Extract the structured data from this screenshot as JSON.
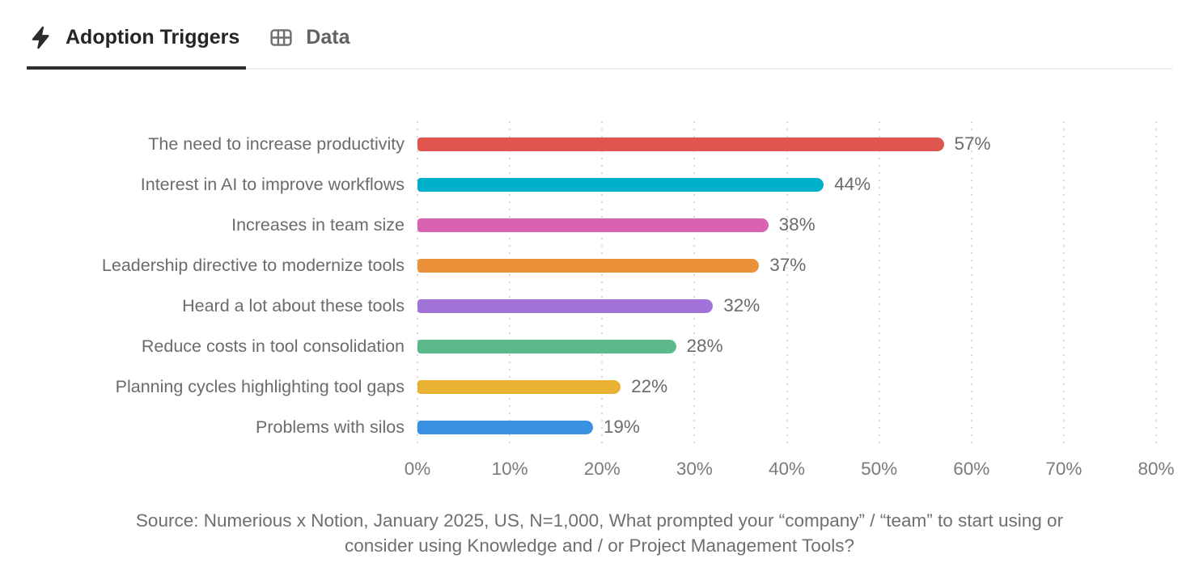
{
  "tabs": [
    {
      "label": "Adoption Triggers",
      "icon": "lightning-icon",
      "active": true
    },
    {
      "label": "Data",
      "icon": "table-icon",
      "active": false
    }
  ],
  "chart_data": {
    "type": "bar",
    "orientation": "horizontal",
    "title": "Adoption Triggers",
    "categories": [
      "The need to increase productivity",
      "Interest in AI to improve workflows",
      "Increases in team size",
      "Leadership directive to modernize tools",
      "Heard a lot about these tools",
      "Reduce costs in tool consolidation",
      "Planning cycles highlighting tool gaps",
      "Problems with silos"
    ],
    "values": [
      57,
      44,
      38,
      37,
      32,
      28,
      22,
      19
    ],
    "value_labels": [
      "57%",
      "44%",
      "38%",
      "37%",
      "32%",
      "28%",
      "22%",
      "19%"
    ],
    "bar_colors": [
      "#E0564F",
      "#00B0CB",
      "#DA62B2",
      "#EB9139",
      "#A172D7",
      "#5BB98A",
      "#EAB232",
      "#3A90E2"
    ],
    "xlim": [
      0,
      80
    ],
    "x_ticks": [
      "0%",
      "10%",
      "20%",
      "30%",
      "40%",
      "50%",
      "60%",
      "70%",
      "80%"
    ],
    "grid": "dotted-vertical",
    "legend": "none"
  },
  "source": {
    "line1": "Source: Numerious x Notion, January 2025, US, N=1,000, What prompted your “company” / “team” to start using or",
    "line2": "consider using Knowledge and / or Project Management Tools?"
  },
  "colors": {
    "active_tab_text": "#252525",
    "inactive_tab_text": "#626262",
    "active_underline": "#2e2e2e",
    "header_border": "#ececec",
    "gridline": "#d9d9d9",
    "label_text": "#6b6b6b",
    "tick_text": "#7b7b7b",
    "source_text": "#6f6f6f"
  }
}
